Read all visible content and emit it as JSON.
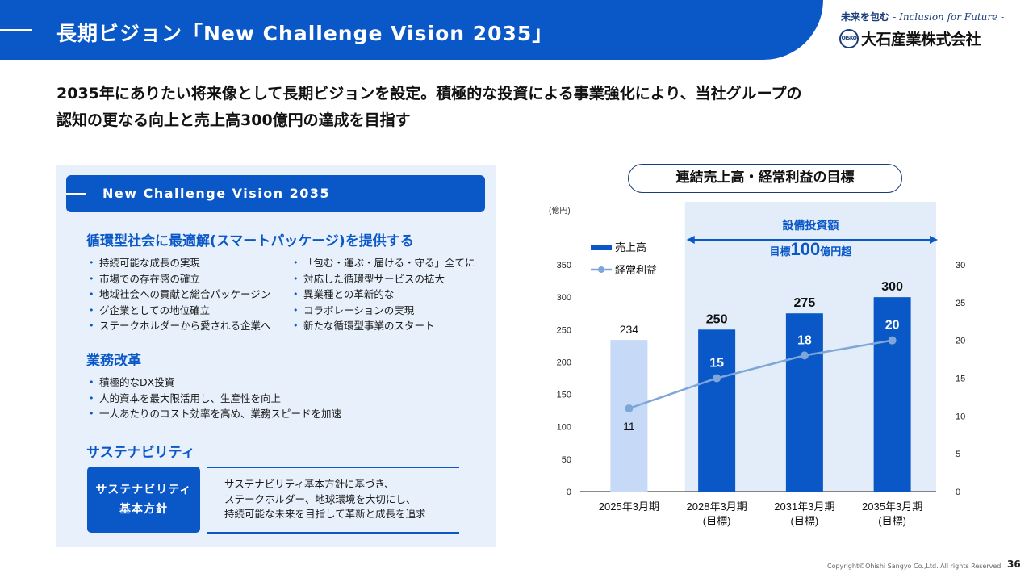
{
  "header": {
    "title": "長期ビジョン「New Challenge Vision 2035」",
    "slogan_jp": "未来を包む",
    "slogan_en": "- Inclusion for Future -",
    "company": "大石産業株式会社",
    "logo_mark": "OISKO"
  },
  "lead": {
    "line1": "2035年にありたい将来像として長期ビジョンを設定。積極的な投資による事業強化により、当社グループの",
    "line2": "認知の更なる向上と売上高300億円の達成を目指す"
  },
  "vision": {
    "banner": "New Challenge Vision 2035",
    "sections": [
      {
        "title": "循環型社会に最適解(スマートパッケージ)を提供する",
        "col1": [
          "持続可能な成長の実現",
          "市場での存在感の確立",
          "地域社会への貢献と総合パッケージン",
          "グ企業としての地位確立",
          "ステークホルダーから愛される企業へ"
        ],
        "col2": [
          "「包む・運ぶ・届ける・守る」全てに",
          "対応した循環型サービスの拡大",
          "異業種との革新的な",
          "コラボレーションの実現",
          "新たな循環型事業のスタート"
        ]
      },
      {
        "title": "業務改革",
        "col1": [
          "積極的なDX投資",
          "人的資本を最大限活用し、生産性を向上",
          "一人あたりのコスト効率を高め、業務スピードを加速"
        ]
      },
      {
        "title": "サステナビリティ",
        "box_line1": "サステナビリティ",
        "box_line2": "基本方針",
        "text": [
          "サステナビリティ基本方針に基づき、",
          "ステークホルダー、地球環境を大切にし、",
          "持続可能な未来を目指して革新と成長を追求"
        ]
      }
    ]
  },
  "chart_data": {
    "type": "bar",
    "title": "連結売上高・経常利益の目標",
    "ylabel": "(億円)",
    "categories": [
      {
        "line1": "2025年3月期",
        "line2": ""
      },
      {
        "line1": "2028年3月期",
        "line2": "(目標)"
      },
      {
        "line1": "2031年3月期",
        "line2": "(目標)"
      },
      {
        "line1": "2035年3月期",
        "line2": "(目標)"
      }
    ],
    "series": [
      {
        "name": "売上高",
        "kind": "bar",
        "axis": "left",
        "values": [
          234,
          250,
          275,
          300
        ]
      },
      {
        "name": "経常利益",
        "kind": "line",
        "axis": "right",
        "values": [
          11,
          15,
          18,
          20
        ]
      }
    ],
    "ylim_left": [
      0,
      350
    ],
    "yticks_left": [
      0,
      50,
      100,
      150,
      200,
      250,
      300,
      350
    ],
    "ylim_right": [
      0,
      30
    ],
    "yticks_right": [
      0,
      5,
      10,
      15,
      20,
      25,
      30
    ],
    "annotation": {
      "line1": "設備投資額",
      "prefix": "目標",
      "value": "100",
      "suffix": "億円超"
    },
    "colors": {
      "bar_actual": "#c6daf7",
      "bar_target": "#0a58c8",
      "line": "#7ea6d8",
      "highlight": "#e3edfa"
    }
  },
  "footer": {
    "copyright": "Copyright©Ohishi Sangyo Co.,Ltd. All rights Reserved",
    "page": "36"
  }
}
